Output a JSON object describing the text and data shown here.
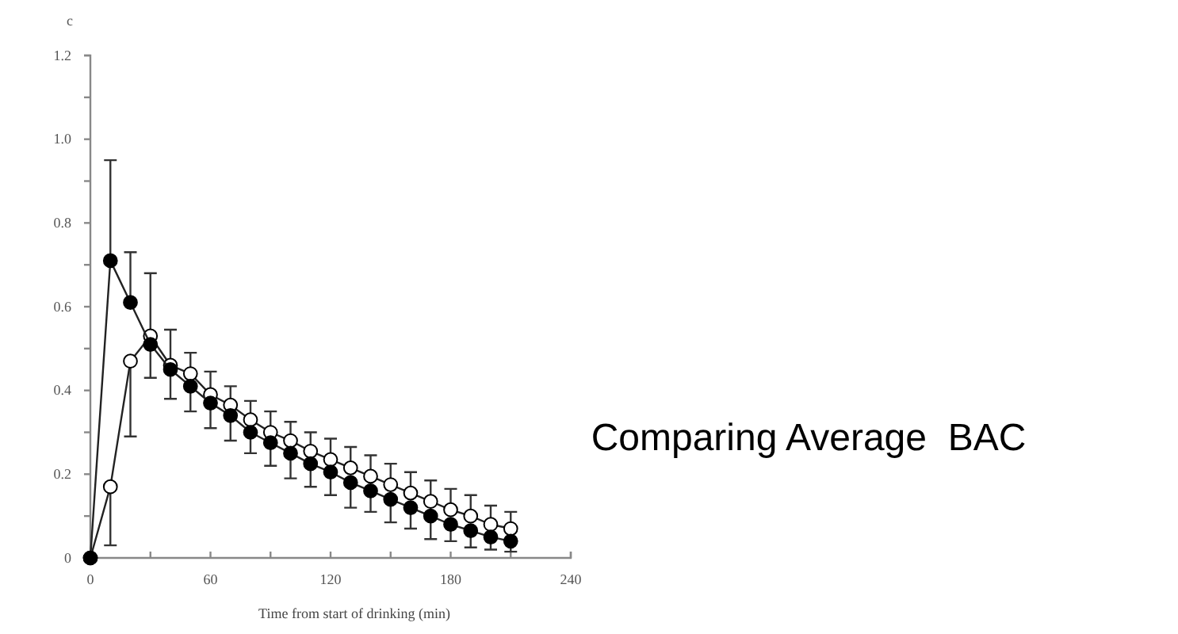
{
  "chart_data": {
    "type": "line",
    "title": "Comparing Average  BAC",
    "ylabel": "c",
    "xlabel": "Time from start of drinking (min)",
    "x": [
      0,
      10,
      20,
      30,
      40,
      50,
      60,
      70,
      80,
      90,
      100,
      110,
      120,
      130,
      140,
      150,
      160,
      170,
      180,
      190,
      200,
      210
    ],
    "series": [
      {
        "color": "#000000",
        "values": [
          0,
          0.71,
          0.61,
          0.51,
          0.45,
          0.41,
          0.37,
          0.34,
          0.3,
          0.275,
          0.25,
          0.225,
          0.205,
          0.18,
          0.16,
          0.14,
          0.12,
          0.1,
          0.08,
          0.065,
          0.05,
          0.04
        ],
        "errors": [
          null,
          [
            0.71,
            0.95
          ],
          [
            0.61,
            0.73
          ],
          [
            0.43,
            0.51
          ],
          [
            0.38,
            0.45
          ],
          [
            0.35,
            0.41
          ],
          [
            0.31,
            0.37
          ],
          [
            0.28,
            0.34
          ],
          [
            0.25,
            0.3
          ],
          [
            0.22,
            0.275
          ],
          [
            0.19,
            0.25
          ],
          [
            0.17,
            0.225
          ],
          [
            0.15,
            0.205
          ],
          [
            0.12,
            0.18
          ],
          [
            0.11,
            0.16
          ],
          [
            0.085,
            0.14
          ],
          [
            0.07,
            0.12
          ],
          [
            0.045,
            0.1
          ],
          [
            0.04,
            0.08
          ],
          [
            0.025,
            0.065
          ],
          [
            0.02,
            0.05
          ],
          [
            0.015,
            0.04
          ]
        ]
      },
      {
        "color": "#ffffff",
        "values": [
          0,
          0.17,
          0.47,
          0.53,
          0.46,
          0.44,
          0.39,
          0.365,
          0.33,
          0.3,
          0.28,
          0.255,
          0.235,
          0.215,
          0.195,
          0.175,
          0.155,
          0.135,
          0.115,
          0.1,
          0.08,
          0.07
        ],
        "errors": [
          null,
          [
            0.03,
            0.17
          ],
          [
            0.29,
            0.47
          ],
          [
            0.53,
            0.68
          ],
          [
            0.46,
            0.545
          ],
          [
            0.44,
            0.49
          ],
          [
            0.39,
            0.445
          ],
          [
            0.365,
            0.41
          ],
          [
            0.33,
            0.375
          ],
          [
            0.3,
            0.35
          ],
          [
            0.28,
            0.325
          ],
          [
            0.255,
            0.3
          ],
          [
            0.235,
            0.285
          ],
          [
            0.215,
            0.265
          ],
          [
            0.195,
            0.245
          ],
          [
            0.175,
            0.225
          ],
          [
            0.155,
            0.205
          ],
          [
            0.135,
            0.185
          ],
          [
            0.115,
            0.165
          ],
          [
            0.1,
            0.15
          ],
          [
            0.08,
            0.125
          ],
          [
            0.07,
            0.11
          ]
        ]
      }
    ],
    "xlim": [
      0,
      240
    ],
    "xticks": [
      0,
      {
        "value": 30,
        "label": null
      },
      60,
      {
        "value": 90,
        "label": null
      },
      120,
      {
        "value": 150,
        "label": null
      },
      180,
      {
        "value": 210,
        "label": null
      },
      240
    ],
    "ylim": [
      0,
      1.2
    ],
    "yticks": [
      0,
      {
        "value": 0.1,
        "label": null
      },
      0.2,
      {
        "value": 0.3,
        "label": null
      },
      0.4,
      {
        "value": 0.5,
        "label": null
      },
      0.6,
      {
        "value": 0.7,
        "label": null
      },
      0.8,
      {
        "value": 0.9,
        "label": null
      },
      {
        "value": 1.0,
        "label": "1.0"
      },
      {
        "value": 1.1,
        "label": null
      },
      1.2
    ],
    "grid": false,
    "marker": "circle",
    "line_style": "solid"
  }
}
